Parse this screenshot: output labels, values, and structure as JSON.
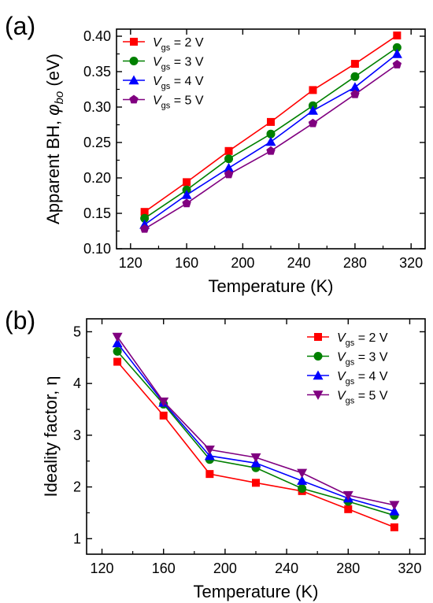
{
  "chart_data": [
    {
      "panel_label": "(a)",
      "type": "line",
      "x": [
        130,
        160,
        190,
        220,
        250,
        280,
        310
      ],
      "xlim": [
        110,
        330
      ],
      "xticks": [
        120,
        160,
        200,
        240,
        280,
        320
      ],
      "ylim": [
        0.1,
        0.41
      ],
      "yticks": [
        0.1,
        0.15,
        0.2,
        0.25,
        0.3,
        0.35,
        0.4
      ],
      "ytick_decimals": 2,
      "xlabel": "Temperature (K)",
      "ylabel": "Apparent BH, ",
      "ylabel_symbol": "φ",
      "ylabel_subscript": "bo",
      "ylabel_unit": " (eV)",
      "legend_position": "top-left",
      "grid": false,
      "series": [
        {
          "legend": {
            "var": "V",
            "sub": "gs",
            "rest": " = 2 V"
          },
          "color": "#ff0000",
          "marker": "square",
          "values": [
            0.152,
            0.194,
            0.238,
            0.279,
            0.324,
            0.361,
            0.401
          ]
        },
        {
          "legend": {
            "var": "V",
            "sub": "gs",
            "rest": " = 3 V"
          },
          "color": "#008000",
          "marker": "circle",
          "values": [
            0.143,
            0.183,
            0.227,
            0.262,
            0.302,
            0.343,
            0.384
          ]
        },
        {
          "legend": {
            "var": "V",
            "sub": "gs",
            "rest": " = 4 V"
          },
          "color": "#0000ff",
          "marker": "triangle-up",
          "values": [
            0.134,
            0.176,
            0.214,
            0.251,
            0.295,
            0.328,
            0.375
          ]
        },
        {
          "legend": {
            "var": "V",
            "sub": "gs",
            "rest": " = 5 V"
          },
          "color": "#800080",
          "marker": "pentagon",
          "values": [
            0.128,
            0.164,
            0.205,
            0.238,
            0.277,
            0.318,
            0.36
          ]
        }
      ]
    },
    {
      "panel_label": "(b)",
      "type": "line",
      "x": [
        130,
        160,
        190,
        220,
        250,
        280,
        310
      ],
      "xlim": [
        110,
        330
      ],
      "xticks": [
        120,
        160,
        200,
        240,
        280,
        320
      ],
      "ylim": [
        0.7,
        5.25
      ],
      "yticks": [
        1,
        2,
        3,
        4,
        5
      ],
      "ytick_decimals": 0,
      "xlabel": "Temperature (K)",
      "ylabel": "Ideality factor, η",
      "legend_position": "top-right",
      "grid": false,
      "series": [
        {
          "legend": {
            "var": "V",
            "sub": "gs",
            "rest": " = 2 V"
          },
          "color": "#ff0000",
          "marker": "square",
          "values": [
            4.42,
            3.38,
            2.25,
            2.08,
            1.92,
            1.57,
            1.22
          ]
        },
        {
          "legend": {
            "var": "V",
            "sub": "gs",
            "rest": " = 3 V"
          },
          "color": "#008000",
          "marker": "circle",
          "values": [
            4.62,
            3.6,
            2.53,
            2.37,
            1.97,
            1.72,
            1.45
          ]
        },
        {
          "legend": {
            "var": "V",
            "sub": "gs",
            "rest": " = 4 V"
          },
          "color": "#0000ff",
          "marker": "triangle-up",
          "values": [
            4.78,
            3.63,
            2.6,
            2.46,
            2.12,
            1.78,
            1.53
          ]
        },
        {
          "legend": {
            "var": "V",
            "sub": "gs",
            "rest": " = 5 V"
          },
          "color": "#800080",
          "marker": "triangle-down",
          "values": [
            4.9,
            3.65,
            2.72,
            2.57,
            2.27,
            1.84,
            1.65
          ]
        }
      ]
    }
  ]
}
